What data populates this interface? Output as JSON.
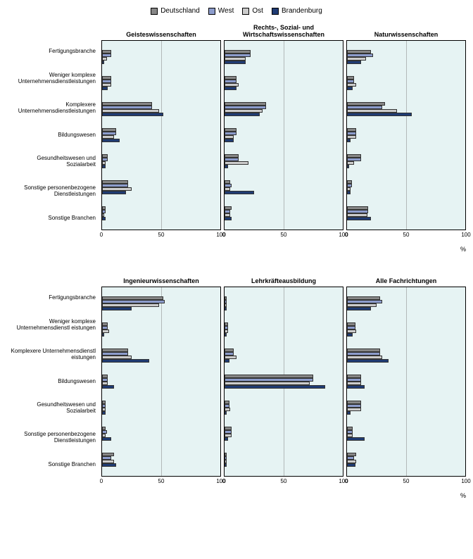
{
  "legend": [
    {
      "label": "Deutschland",
      "color": "#878787"
    },
    {
      "label": "West",
      "color": "#8C9CCC"
    },
    {
      "label": "Ost",
      "color": "#CCCCCC"
    },
    {
      "label": "Brandenburg",
      "color": "#1F3B73"
    }
  ],
  "categories": [
    "Fertigungsbranche",
    "Weniger komplexe Unternehmensdienstleistungen",
    "Komplexere Unternehmensdienstleistungen",
    "Bildungswesen",
    "Gesundheitswesen und Sozialarbeit",
    "Sonstige personenbezogene Dienstleistungen",
    "Sonstige Branchen"
  ],
  "categories2": [
    "Fertigungsbranche",
    "Weniger komplexe Unternehmensdienstl eistungen",
    "Komplexere Unternehmensdienstl eistungen",
    "Bildungswesen",
    "Gesundheitswesen und Sozialarbeit",
    "Sonstige personenbezogene Dienstleistungen",
    "Sonstige Branchen"
  ],
  "xticks": [
    0,
    50,
    100
  ],
  "panels_row1": [
    {
      "title": "Geisteswissenschaften",
      "data": [
        [
          8,
          8,
          4,
          2
        ],
        [
          8,
          8,
          8,
          5
        ],
        [
          42,
          42,
          48,
          52
        ],
        [
          12,
          12,
          10,
          15
        ],
        [
          5,
          5,
          3,
          3
        ],
        [
          22,
          22,
          25,
          20
        ],
        [
          3,
          3,
          2,
          3
        ]
      ]
    },
    {
      "title": "Rechts-, Sozial- und Wirtschaftswissenschaften",
      "data": [
        [
          22,
          22,
          18,
          18
        ],
        [
          10,
          10,
          12,
          10
        ],
        [
          35,
          35,
          32,
          30
        ],
        [
          10,
          10,
          8,
          8
        ],
        [
          12,
          12,
          20,
          3
        ],
        [
          5,
          6,
          5,
          25
        ],
        [
          6,
          5,
          5,
          6
        ]
      ]
    },
    {
      "title": "Naturwissenschaften",
      "data": [
        [
          20,
          22,
          16,
          12
        ],
        [
          6,
          6,
          8,
          5
        ],
        [
          32,
          30,
          42,
          55
        ],
        [
          8,
          8,
          8,
          3
        ],
        [
          12,
          12,
          6,
          2
        ],
        [
          4,
          4,
          3,
          3
        ],
        [
          18,
          18,
          17,
          20
        ]
      ]
    }
  ],
  "panels_row2": [
    {
      "title": "Ingenieurwissenschaften",
      "data": [
        [
          52,
          53,
          48,
          25
        ],
        [
          5,
          5,
          6,
          2
        ],
        [
          22,
          22,
          25,
          40
        ],
        [
          5,
          5,
          5,
          10
        ],
        [
          3,
          3,
          3,
          3
        ],
        [
          3,
          4,
          3,
          8
        ],
        [
          10,
          8,
          10,
          12
        ]
      ]
    },
    {
      "title": "Lehrkräfteausbildung",
      "data": [
        [
          2,
          2,
          2,
          2
        ],
        [
          3,
          3,
          3,
          2
        ],
        [
          8,
          8,
          10,
          4
        ],
        [
          75,
          75,
          72,
          85
        ],
        [
          4,
          4,
          5,
          2
        ],
        [
          6,
          6,
          6,
          3
        ],
        [
          2,
          2,
          2,
          2
        ]
      ]
    },
    {
      "title": "Alle Fachrichtungen",
      "data": [
        [
          28,
          30,
          25,
          20
        ],
        [
          7,
          7,
          8,
          5
        ],
        [
          28,
          28,
          30,
          35
        ],
        [
          12,
          12,
          12,
          15
        ],
        [
          12,
          12,
          12,
          3
        ],
        [
          5,
          5,
          5,
          15
        ],
        [
          8,
          6,
          8,
          7
        ]
      ]
    }
  ],
  "plot_bg": "#E6F3F3",
  "pct_label": "%"
}
